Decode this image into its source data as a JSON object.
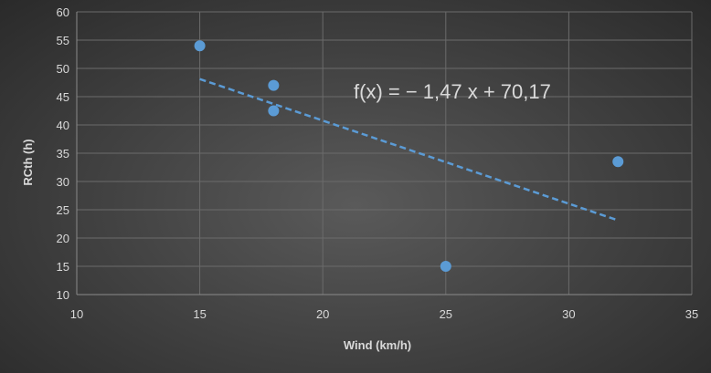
{
  "chart_data": {
    "type": "scatter",
    "title": "",
    "xlabel": "Wind (km/h)",
    "ylabel": "RCth (h)",
    "xlim": [
      10,
      35
    ],
    "ylim": [
      10,
      60
    ],
    "x_ticks": [
      "10",
      "15",
      "20",
      "25",
      "30",
      "35"
    ],
    "y_ticks": [
      "10",
      "15",
      "20",
      "25",
      "30",
      "35",
      "40",
      "45",
      "50",
      "55",
      "60"
    ],
    "grid": true,
    "legend": "none",
    "series": [
      {
        "points": [
          {
            "x": 15,
            "y": 54
          },
          {
            "x": 18,
            "y": 47
          },
          {
            "x": 18,
            "y": 42.5
          },
          {
            "x": 25,
            "y": 15
          },
          {
            "x": 32,
            "y": 33.5
          }
        ],
        "color": "#5b9bd5"
      }
    ],
    "trendline": {
      "type": "linear",
      "slope": -1.47,
      "intercept": 70.17,
      "x_range": [
        15,
        32
      ],
      "style": "dashed",
      "color": "#5b9bd5"
    },
    "annotation": "f(x) = − 1,47 x + 70,17"
  },
  "colors": {
    "marker": "#5b9bd5",
    "grid": "#6b6b6b",
    "text": "#d9d9d9"
  }
}
